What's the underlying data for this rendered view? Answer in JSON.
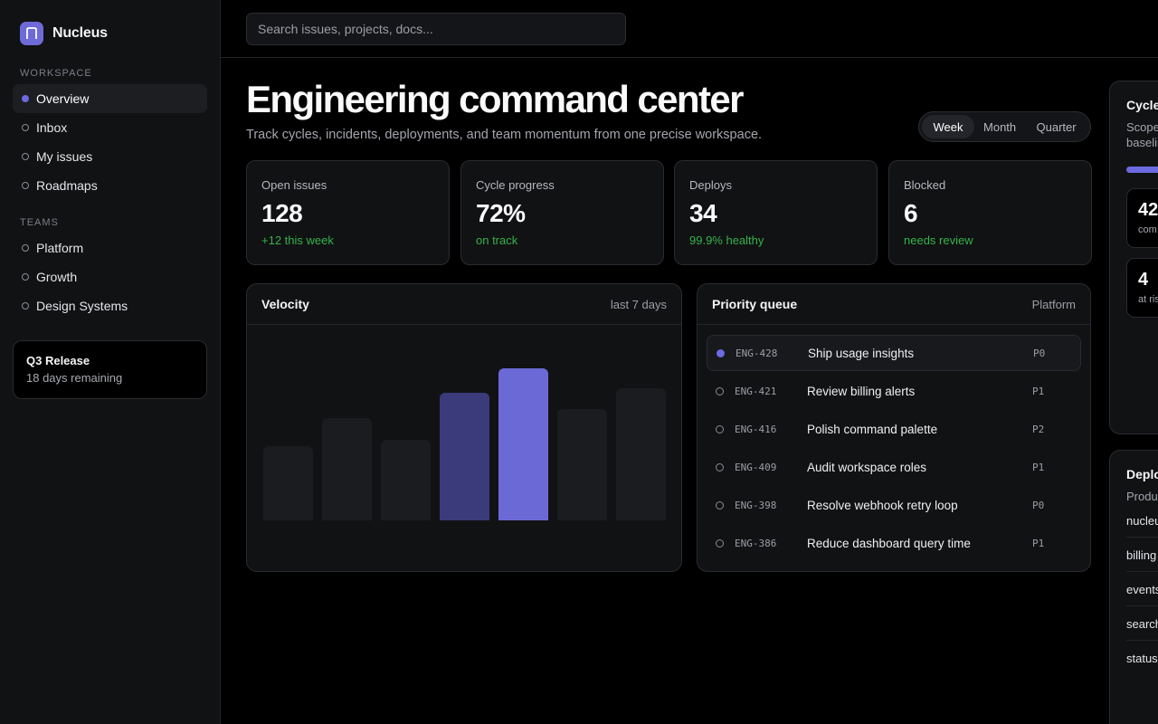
{
  "app": {
    "name": "Nucleus"
  },
  "sidebar": {
    "workspace_label": "WORKSPACE",
    "workspace_items": [
      {
        "label": "Overview",
        "active": true
      },
      {
        "label": "Inbox",
        "active": false
      },
      {
        "label": "My issues",
        "active": false
      },
      {
        "label": "Roadmaps",
        "active": false
      }
    ],
    "teams_label": "TEAMS",
    "team_items": [
      {
        "label": "Platform"
      },
      {
        "label": "Growth"
      },
      {
        "label": "Design Systems"
      }
    ],
    "release": {
      "title": "Q3 Release",
      "subtitle": "18 days remaining"
    }
  },
  "search": {
    "placeholder": "Search issues, projects, docs..."
  },
  "header": {
    "title": "Engineering command center",
    "subtitle": "Track cycles, incidents, deployments, and team momentum from one precise workspace.",
    "range_options": [
      "Week",
      "Month",
      "Quarter"
    ],
    "range_selected": "Week"
  },
  "stats": [
    {
      "label": "Open issues",
      "value": "128",
      "note": "+12 this week"
    },
    {
      "label": "Cycle progress",
      "value": "72%",
      "note": "on track"
    },
    {
      "label": "Deploys",
      "value": "34",
      "note": "99.9% healthy"
    },
    {
      "label": "Blocked",
      "value": "6",
      "note": "needs review"
    }
  ],
  "velocity": {
    "title": "Velocity",
    "meta": "last 7 days"
  },
  "chart_data": {
    "type": "bar",
    "title": "Velocity",
    "categories": [
      "",
      "",
      "",
      "",
      "",
      "",
      ""
    ],
    "values": [
      49,
      67,
      53,
      84,
      100,
      73,
      87
    ],
    "ylim": [
      0,
      100
    ],
    "highlight_index": 4,
    "secondary_index": 3,
    "colors": {
      "base": "#1b1c1f",
      "secondary": "#3b3a7a",
      "highlight": "#6b69d6"
    }
  },
  "queue": {
    "title": "Priority queue",
    "meta": "Platform",
    "items": [
      {
        "id": "ENG-428",
        "title": "Ship usage insights",
        "priority": "P0",
        "active": true
      },
      {
        "id": "ENG-421",
        "title": "Review billing alerts",
        "priority": "P1",
        "active": false
      },
      {
        "id": "ENG-416",
        "title": "Polish command palette",
        "priority": "P2",
        "active": false
      },
      {
        "id": "ENG-409",
        "title": "Audit workspace roles",
        "priority": "P1",
        "active": false
      },
      {
        "id": "ENG-398",
        "title": "Resolve webhook retry loop",
        "priority": "P0",
        "active": false
      },
      {
        "id": "ENG-386",
        "title": "Reduce dashboard query time",
        "priority": "P1",
        "active": false
      }
    ]
  },
  "cycle_panel": {
    "title": "Cycle",
    "sub_1": "Scope",
    "sub_2": "baselin",
    "box_1": {
      "value": "42",
      "label": "com"
    },
    "box_2": {
      "value": "4",
      "label": "at ris"
    }
  },
  "deploy_panel": {
    "title": "Deplo",
    "sub": "Produc",
    "services": [
      "nucleu",
      "billing",
      "events",
      "search",
      "status"
    ]
  },
  "colors": {
    "accent": "#6c6ae0",
    "positive": "#36b34a",
    "background": "#000000",
    "surface": "#111214"
  }
}
